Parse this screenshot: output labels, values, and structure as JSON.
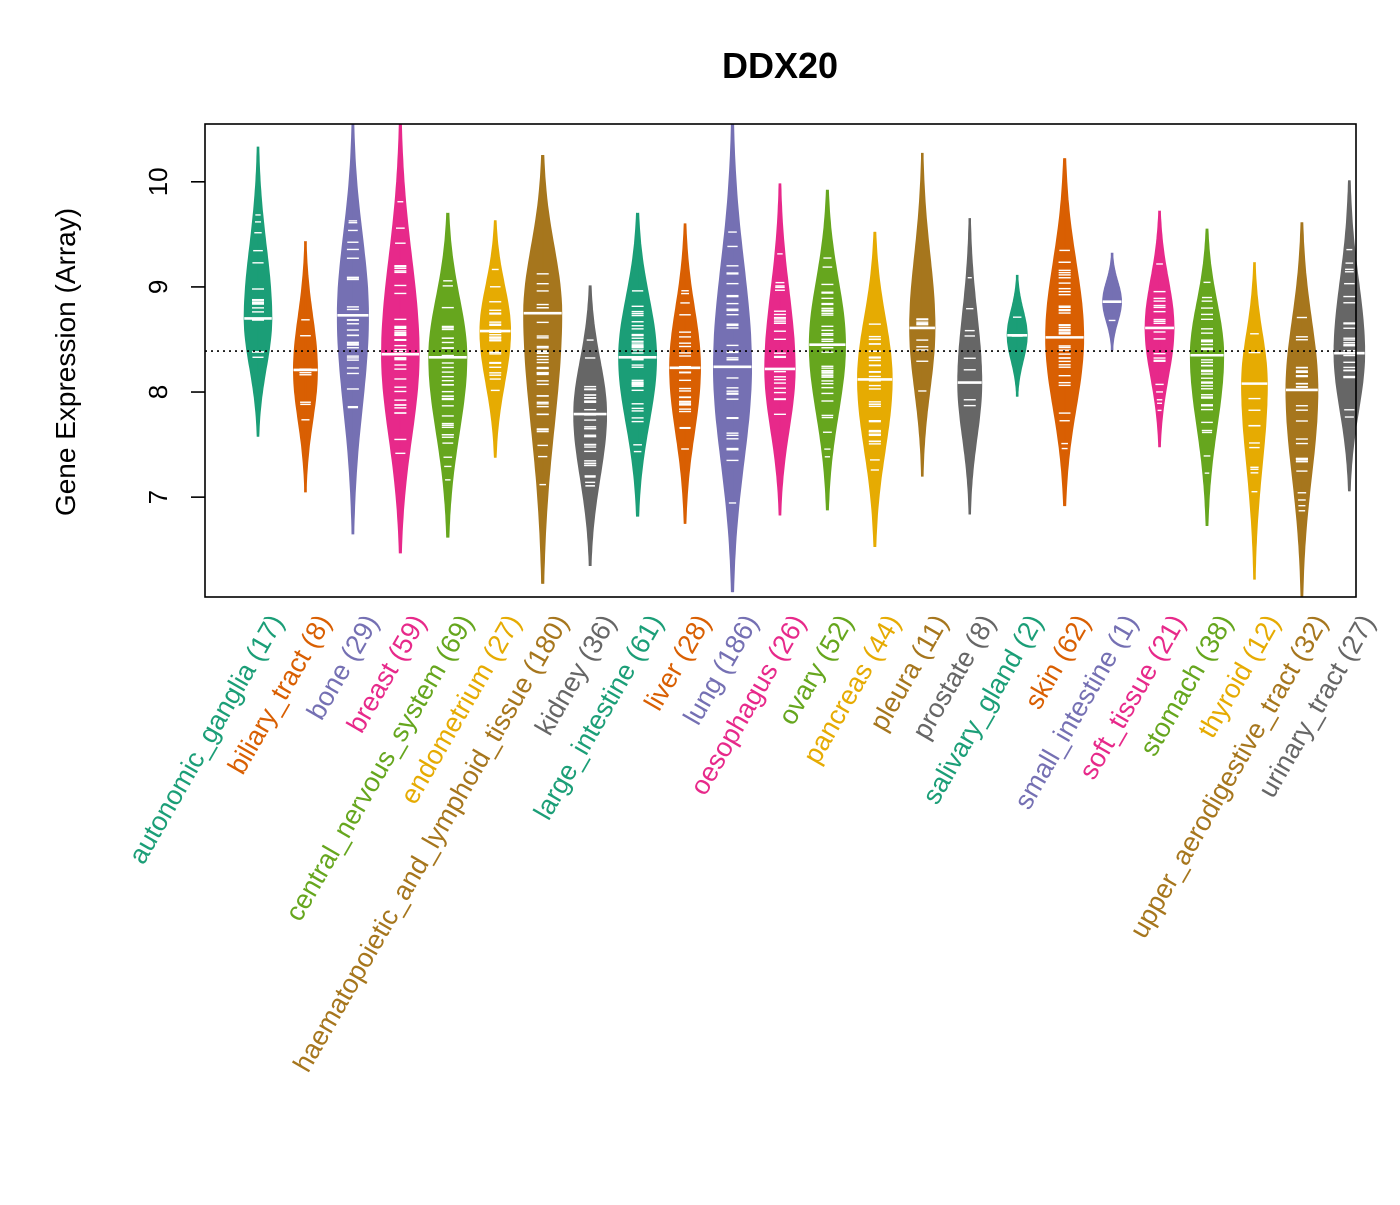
{
  "chart_data": {
    "type": "violin",
    "title": "DDX20",
    "ylabel": "Gene Expression (Array)",
    "xlabel": "",
    "ylim": [
      6.05,
      10.55
    ],
    "yticks": [
      "7",
      "8",
      "9",
      "10"
    ],
    "reference_line": 8.39,
    "grid": false,
    "legend": "none",
    "categories": [
      {
        "label": "autonomic_ganglia",
        "n_label": "(17)",
        "color": "#1b9e77",
        "median": 8.7,
        "min": 7.58,
        "max": 10.33
      },
      {
        "label": "biliary_tract",
        "n_label": "(8)",
        "color": "#d95f02",
        "median": 8.21,
        "min": 7.05,
        "max": 9.43
      },
      {
        "label": "bone",
        "n_label": "(29)",
        "color": "#7570b3",
        "median": 8.73,
        "min": 6.65,
        "max": 10.55
      },
      {
        "label": "breast",
        "n_label": "(59)",
        "color": "#e7298a",
        "median": 8.36,
        "min": 6.47,
        "max": 10.55
      },
      {
        "label": "central_nervous_system",
        "n_label": "(69)",
        "color": "#66a61e",
        "median": 8.33,
        "min": 6.62,
        "max": 9.7
      },
      {
        "label": "endometrium",
        "n_label": "(27)",
        "color": "#e6ab02",
        "median": 8.58,
        "min": 7.38,
        "max": 9.63
      },
      {
        "label": "haematopoietic_and_lymphoid_tissue",
        "n_label": "(180)",
        "color": "#a6761d",
        "median": 8.75,
        "min": 6.18,
        "max": 10.25
      },
      {
        "label": "kidney",
        "n_label": "(36)",
        "color": "#666666",
        "median": 7.79,
        "min": 6.35,
        "max": 9.01
      },
      {
        "label": "large_intestine",
        "n_label": "(61)",
        "color": "#1b9e77",
        "median": 8.33,
        "min": 6.82,
        "max": 9.7
      },
      {
        "label": "liver",
        "n_label": "(28)",
        "color": "#d95f02",
        "median": 8.23,
        "min": 6.75,
        "max": 9.6
      },
      {
        "label": "lung",
        "n_label": "(186)",
        "color": "#7570b3",
        "median": 8.24,
        "min": 6.1,
        "max": 10.55
      },
      {
        "label": "oesophagus",
        "n_label": "(26)",
        "color": "#e7298a",
        "median": 8.22,
        "min": 6.83,
        "max": 9.98
      },
      {
        "label": "ovary",
        "n_label": "(52)",
        "color": "#66a61e",
        "median": 8.45,
        "min": 6.88,
        "max": 9.92
      },
      {
        "label": "pancreas",
        "n_label": "(44)",
        "color": "#e6ab02",
        "median": 8.12,
        "min": 6.53,
        "max": 9.52
      },
      {
        "label": "pleura",
        "n_label": "(11)",
        "color": "#a6761d",
        "median": 8.61,
        "min": 7.2,
        "max": 10.27
      },
      {
        "label": "prostate",
        "n_label": "(8)",
        "color": "#666666",
        "median": 8.09,
        "min": 6.84,
        "max": 9.65
      },
      {
        "label": "salivary_gland",
        "n_label": "(2)",
        "color": "#1b9e77",
        "median": 8.54,
        "min": 7.96,
        "max": 9.11
      },
      {
        "label": "skin",
        "n_label": "(62)",
        "color": "#d95f02",
        "median": 8.52,
        "min": 6.92,
        "max": 10.22
      },
      {
        "label": "small_intestine",
        "n_label": "(1)",
        "color": "#7570b3",
        "median": 8.86,
        "min": 8.4,
        "max": 9.32
      },
      {
        "label": "soft_tissue",
        "n_label": "(21)",
        "color": "#e7298a",
        "median": 8.61,
        "min": 7.48,
        "max": 9.72
      },
      {
        "label": "stomach",
        "n_label": "(38)",
        "color": "#66a61e",
        "median": 8.35,
        "min": 6.73,
        "max": 9.55
      },
      {
        "label": "thyroid",
        "n_label": "(12)",
        "color": "#e6ab02",
        "median": 8.08,
        "min": 6.22,
        "max": 9.23
      },
      {
        "label": "upper_aerodigestive_tract",
        "n_label": "(32)",
        "color": "#a6761d",
        "median": 8.02,
        "min": 6.06,
        "max": 9.61
      },
      {
        "label": "urinary_tract",
        "n_label": "(27)",
        "color": "#666666",
        "median": 8.37,
        "min": 7.06,
        "max": 10.01
      }
    ]
  }
}
